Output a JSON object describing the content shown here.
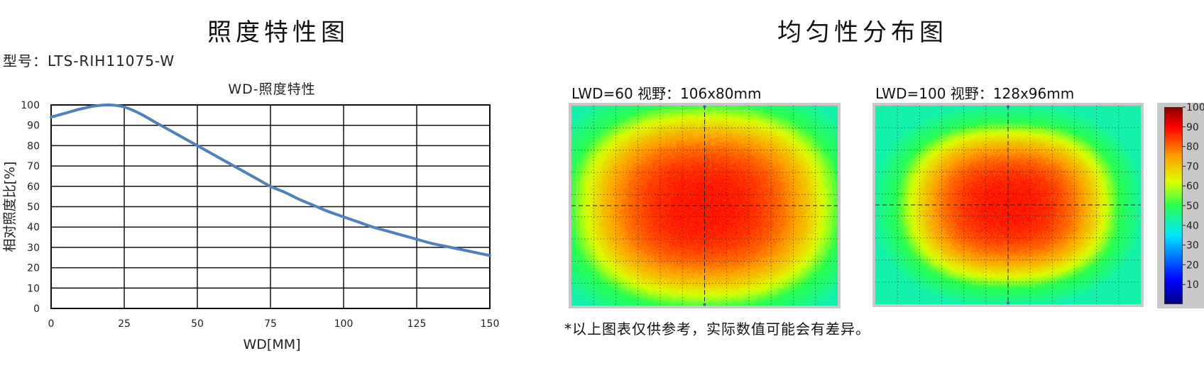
{
  "left_title": "照度特性图",
  "model": "型号：LTS-RIH11075-W",
  "right_title": "均匀性分布图",
  "note": "*以上图表仅供参考，实际数值可能会有差异。",
  "chart_data": [
    {
      "type": "line",
      "title": "WD-照度特性",
      "xlabel": "WD[MM]",
      "ylabel": "相对照度比[%]",
      "xlim": [
        0,
        150
      ],
      "ylim": [
        0,
        100
      ],
      "xticks": [
        0,
        25,
        50,
        75,
        100,
        125,
        150
      ],
      "yticks": [
        0,
        10,
        20,
        30,
        40,
        50,
        60,
        70,
        80,
        90,
        100
      ],
      "grid": true,
      "color": "#4f81bd",
      "x": [
        0,
        5,
        10,
        15,
        20,
        25,
        30,
        35,
        40,
        45,
        50,
        55,
        60,
        65,
        70,
        75,
        80,
        85,
        90,
        95,
        100,
        105,
        110,
        115,
        120,
        125,
        130,
        135,
        140,
        145,
        150
      ],
      "y": [
        94,
        96,
        98,
        99.5,
        100,
        99,
        96,
        92,
        88,
        84,
        80,
        76,
        72,
        68,
        64,
        60,
        57,
        53.5,
        50.5,
        47.5,
        45,
        42.5,
        40,
        38,
        36,
        34,
        32,
        30.5,
        29,
        27.5,
        26
      ]
    },
    {
      "type": "heatmap",
      "label": "LWD=60   视野：106x80mm",
      "spread": 1.0
    },
    {
      "type": "heatmap",
      "label": "LWD=100   视野：128x96mm",
      "spread": 0.82
    },
    {
      "type": "colorbar",
      "ticks": [
        10,
        20,
        30,
        40,
        50,
        60,
        70,
        80,
        90,
        100
      ],
      "range": [
        0,
        100
      ]
    }
  ]
}
